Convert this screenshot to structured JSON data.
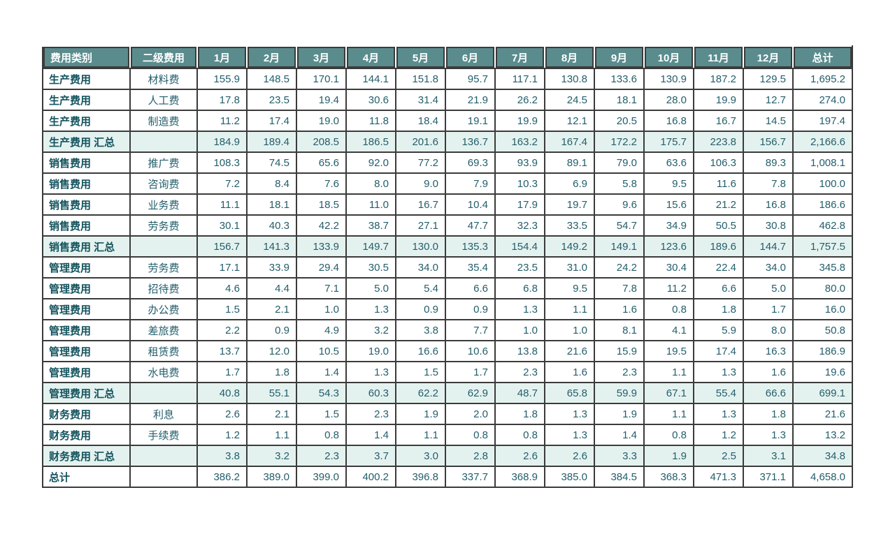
{
  "colors": {
    "header_bg": "#5a8c8e",
    "header_text": "#ffffff",
    "border": "#3b3b3b",
    "subtotal_bg": "#e4f2ef",
    "value_text": "#235e6b",
    "category_text": "#14535e",
    "row_bg": "#ffffff"
  },
  "chart_data": {
    "type": "table",
    "columns": [
      "费用类别",
      "二级费用",
      "1月",
      "2月",
      "3月",
      "4月",
      "5月",
      "6月",
      "7月",
      "8月",
      "9月",
      "10月",
      "11月",
      "12月",
      "总计"
    ],
    "rows": [
      {
        "type": "data",
        "category": "生产费用",
        "sub": "材料费",
        "values": [
          "155.9",
          "148.5",
          "170.1",
          "144.1",
          "151.8",
          "95.7",
          "117.1",
          "130.8",
          "133.6",
          "130.9",
          "187.2",
          "129.5",
          "1,695.2"
        ]
      },
      {
        "type": "data",
        "category": "生产费用",
        "sub": "人工费",
        "values": [
          "17.8",
          "23.5",
          "19.4",
          "30.6",
          "31.4",
          "21.9",
          "26.2",
          "24.5",
          "18.1",
          "28.0",
          "19.9",
          "12.7",
          "274.0"
        ]
      },
      {
        "type": "data",
        "category": "生产费用",
        "sub": "制造费",
        "values": [
          "11.2",
          "17.4",
          "19.0",
          "11.8",
          "18.4",
          "19.1",
          "19.9",
          "12.1",
          "20.5",
          "16.8",
          "16.7",
          "14.5",
          "197.4"
        ]
      },
      {
        "type": "subtotal",
        "category": "生产费用  汇总",
        "sub": "",
        "values": [
          "184.9",
          "189.4",
          "208.5",
          "186.5",
          "201.6",
          "136.7",
          "163.2",
          "167.4",
          "172.2",
          "175.7",
          "223.8",
          "156.7",
          "2,166.6"
        ]
      },
      {
        "type": "data",
        "category": "销售费用",
        "sub": "推广费",
        "values": [
          "108.3",
          "74.5",
          "65.6",
          "92.0",
          "77.2",
          "69.3",
          "93.9",
          "89.1",
          "79.0",
          "63.6",
          "106.3",
          "89.3",
          "1,008.1"
        ]
      },
      {
        "type": "data",
        "category": "销售费用",
        "sub": "咨询费",
        "values": [
          "7.2",
          "8.4",
          "7.6",
          "8.0",
          "9.0",
          "7.9",
          "10.3",
          "6.9",
          "5.8",
          "9.5",
          "11.6",
          "7.8",
          "100.0"
        ]
      },
      {
        "type": "data",
        "category": "销售费用",
        "sub": "业务费",
        "values": [
          "11.1",
          "18.1",
          "18.5",
          "11.0",
          "16.7",
          "10.4",
          "17.9",
          "19.7",
          "9.6",
          "15.6",
          "21.2",
          "16.8",
          "186.6"
        ]
      },
      {
        "type": "data",
        "category": "销售费用",
        "sub": "劳务费",
        "values": [
          "30.1",
          "40.3",
          "42.2",
          "38.7",
          "27.1",
          "47.7",
          "32.3",
          "33.5",
          "54.7",
          "34.9",
          "50.5",
          "30.8",
          "462.8"
        ]
      },
      {
        "type": "subtotal",
        "category": "销售费用  汇总",
        "sub": "",
        "values": [
          "156.7",
          "141.3",
          "133.9",
          "149.7",
          "130.0",
          "135.3",
          "154.4",
          "149.2",
          "149.1",
          "123.6",
          "189.6",
          "144.7",
          "1,757.5"
        ]
      },
      {
        "type": "data",
        "category": "管理费用",
        "sub": "劳务费",
        "values": [
          "17.1",
          "33.9",
          "29.4",
          "30.5",
          "34.0",
          "35.4",
          "23.5",
          "31.0",
          "24.2",
          "30.4",
          "22.4",
          "34.0",
          "345.8"
        ]
      },
      {
        "type": "data",
        "category": "管理费用",
        "sub": "招待费",
        "values": [
          "4.6",
          "4.4",
          "7.1",
          "5.0",
          "5.4",
          "6.6",
          "6.8",
          "9.5",
          "7.8",
          "11.2",
          "6.6",
          "5.0",
          "80.0"
        ]
      },
      {
        "type": "data",
        "category": "管理费用",
        "sub": "办公费",
        "values": [
          "1.5",
          "2.1",
          "1.0",
          "1.3",
          "0.9",
          "0.9",
          "1.3",
          "1.1",
          "1.6",
          "0.8",
          "1.8",
          "1.7",
          "16.0"
        ]
      },
      {
        "type": "data",
        "category": "管理费用",
        "sub": "差旅费",
        "values": [
          "2.2",
          "0.9",
          "4.9",
          "3.2",
          "3.8",
          "7.7",
          "1.0",
          "1.0",
          "8.1",
          "4.1",
          "5.9",
          "8.0",
          "50.8"
        ]
      },
      {
        "type": "data",
        "category": "管理费用",
        "sub": "租赁费",
        "values": [
          "13.7",
          "12.0",
          "10.5",
          "19.0",
          "16.6",
          "10.6",
          "13.8",
          "21.6",
          "15.9",
          "19.5",
          "17.4",
          "16.3",
          "186.9"
        ]
      },
      {
        "type": "data",
        "category": "管理费用",
        "sub": "水电费",
        "values": [
          "1.7",
          "1.8",
          "1.4",
          "1.3",
          "1.5",
          "1.7",
          "2.3",
          "1.6",
          "2.3",
          "1.1",
          "1.3",
          "1.6",
          "19.6"
        ]
      },
      {
        "type": "subtotal",
        "category": "管理费用  汇总",
        "sub": "",
        "values": [
          "40.8",
          "55.1",
          "54.3",
          "60.3",
          "62.2",
          "62.9",
          "48.7",
          "65.8",
          "59.9",
          "67.1",
          "55.4",
          "66.6",
          "699.1"
        ]
      },
      {
        "type": "data",
        "category": "财务费用",
        "sub": "利息",
        "values": [
          "2.6",
          "2.1",
          "1.5",
          "2.3",
          "1.9",
          "2.0",
          "1.8",
          "1.3",
          "1.9",
          "1.1",
          "1.3",
          "1.8",
          "21.6"
        ]
      },
      {
        "type": "data",
        "category": "财务费用",
        "sub": "手续费",
        "values": [
          "1.2",
          "1.1",
          "0.8",
          "1.4",
          "1.1",
          "0.8",
          "0.8",
          "1.3",
          "1.4",
          "0.8",
          "1.2",
          "1.3",
          "13.2"
        ]
      },
      {
        "type": "subtotal",
        "category": "财务费用  汇总",
        "sub": "",
        "values": [
          "3.8",
          "3.2",
          "2.3",
          "3.7",
          "3.0",
          "2.8",
          "2.6",
          "2.6",
          "3.3",
          "1.9",
          "2.5",
          "3.1",
          "34.8"
        ]
      },
      {
        "type": "grand",
        "category": "总计",
        "sub": "",
        "values": [
          "386.2",
          "389.0",
          "399.0",
          "400.2",
          "396.8",
          "337.7",
          "368.9",
          "385.0",
          "384.5",
          "368.3",
          "471.3",
          "371.1",
          "4,658.0"
        ]
      }
    ]
  }
}
